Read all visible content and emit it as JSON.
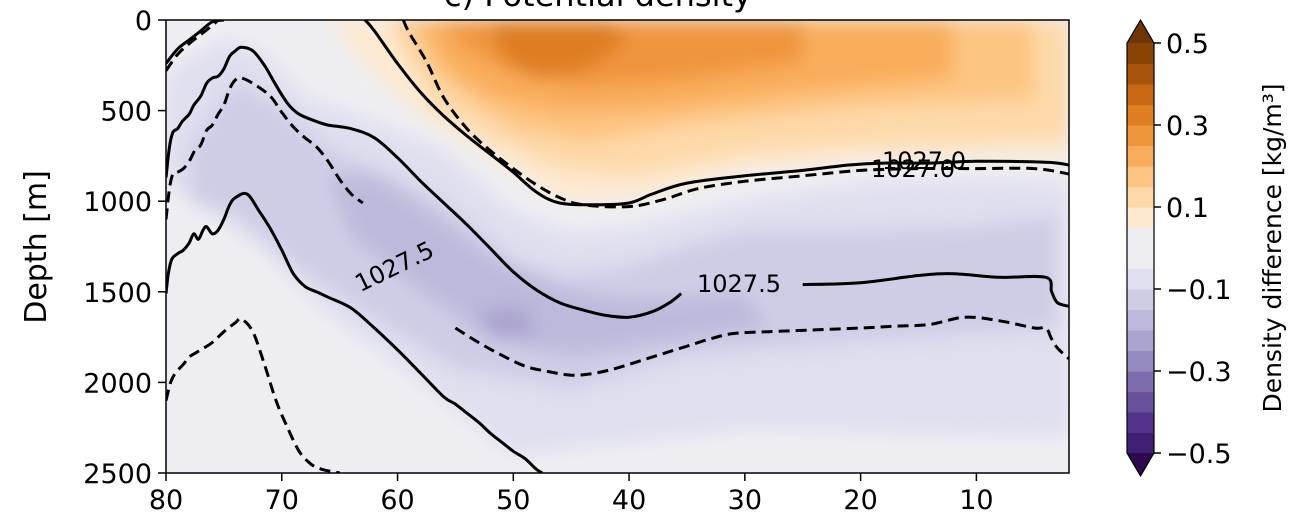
{
  "chart_data": {
    "type": "contour",
    "title": "c) Potential density",
    "ylabel": "Depth [m]",
    "xlim": [
      80,
      2
    ],
    "ylim": [
      2500,
      0
    ],
    "x_ticks": [
      80,
      70,
      60,
      50,
      40,
      30,
      20,
      10
    ],
    "y_ticks": [
      0,
      500,
      1000,
      1500,
      2000,
      2500
    ],
    "colorbar": {
      "label": "Density difference [kg/m³]",
      "range": [
        -0.5,
        0.5
      ],
      "ticks": [
        "0.5",
        "0.3",
        "0.1",
        "−0.1",
        "−0.3",
        "−0.5"
      ],
      "tick_values": [
        0.5,
        0.3,
        0.1,
        -0.1,
        -0.3,
        -0.5
      ],
      "levels": [
        -0.5,
        -0.45,
        -0.4,
        -0.35,
        -0.3,
        -0.25,
        -0.2,
        -0.15,
        -0.1,
        -0.05,
        0.05,
        0.1,
        0.15,
        0.2,
        0.25,
        0.3,
        0.35,
        0.4,
        0.45,
        0.5
      ],
      "extend": "both",
      "colors": [
        "#2d0a4e",
        "#3f1f73",
        "#53338a",
        "#67519d",
        "#7d6daf",
        "#958bc0",
        "#aaa4cf",
        "#bdb9dc",
        "#cfcde6",
        "#e0dfef",
        "#eeeef2",
        "#fde9d0",
        "#fdd9a9",
        "#fdc582",
        "#f9ad5c",
        "#ef953c",
        "#df7d21",
        "#c86815",
        "#a9540c",
        "#8a4306",
        "#6e3505"
      ],
      "extend_low_color": "#2d0a4e",
      "extend_high_color": "#6e3505"
    },
    "contour_labels": [
      "1027.0",
      "1027.0",
      "1027.5",
      "1027.5"
    ],
    "isopycnals": [
      {
        "level": 1027.0,
        "style": "solid",
        "points": [
          [
            80,
            240
          ],
          [
            79,
            160
          ],
          [
            78,
            110
          ],
          [
            77,
            60
          ],
          [
            76,
            10
          ],
          [
            75,
            0
          ]
        ]
      },
      {
        "level": 1027.0,
        "style": "dashed",
        "points": [
          [
            80,
            280
          ],
          [
            79,
            190
          ],
          [
            78,
            130
          ],
          [
            77,
            80
          ],
          [
            76,
            30
          ],
          [
            75.5,
            0
          ]
        ]
      },
      {
        "level": 1027.0,
        "style": "solid",
        "points": [
          [
            62.8,
            0
          ],
          [
            62,
            60
          ],
          [
            60,
            240
          ],
          [
            58,
            400
          ],
          [
            56,
            530
          ],
          [
            54,
            640
          ],
          [
            52,
            740
          ],
          [
            50,
            840
          ],
          [
            48,
            950
          ],
          [
            46,
            1010
          ],
          [
            43,
            1020
          ],
          [
            40,
            1010
          ],
          [
            38,
            960
          ],
          [
            35,
            900
          ],
          [
            30,
            860
          ],
          [
            25,
            830
          ],
          [
            21,
            800
          ],
          [
            18,
            790
          ],
          [
            14,
            790
          ],
          [
            10,
            780
          ],
          [
            4,
            785
          ],
          [
            2,
            800
          ]
        ]
      },
      {
        "level": 1027.0,
        "style": "dashed",
        "points": [
          [
            59.5,
            0
          ],
          [
            59,
            70
          ],
          [
            57.5,
            230
          ],
          [
            56,
            430
          ],
          [
            54,
            600
          ],
          [
            52,
            720
          ],
          [
            50,
            820
          ],
          [
            48,
            910
          ],
          [
            46,
            980
          ],
          [
            44,
            1020
          ],
          [
            40,
            1030
          ],
          [
            37,
            990
          ],
          [
            34,
            930
          ],
          [
            30,
            890
          ],
          [
            25,
            860
          ],
          [
            20,
            830
          ],
          [
            15,
            820
          ],
          [
            10,
            820
          ],
          [
            5,
            820
          ],
          [
            2,
            850
          ]
        ]
      },
      {
        "level": 1027.5,
        "style": "solid",
        "points": [
          [
            80,
            870
          ],
          [
            79.7,
            700
          ],
          [
            79.4,
            620
          ],
          [
            79,
            600
          ],
          [
            78.6,
            560
          ],
          [
            78,
            520
          ],
          [
            77.6,
            470
          ],
          [
            77,
            420
          ],
          [
            76.5,
            350
          ],
          [
            76,
            320
          ],
          [
            75.5,
            310
          ],
          [
            75,
            270
          ],
          [
            74.5,
            200
          ],
          [
            74,
            170
          ],
          [
            73.5,
            150
          ],
          [
            72.5,
            170
          ],
          [
            71.5,
            250
          ],
          [
            70.5,
            360
          ],
          [
            69.5,
            460
          ],
          [
            68.5,
            520
          ],
          [
            67,
            560
          ],
          [
            66,
            580
          ],
          [
            64,
            600
          ],
          [
            62,
            650
          ],
          [
            60,
            760
          ],
          [
            58,
            890
          ],
          [
            56,
            1010
          ],
          [
            54,
            1130
          ],
          [
            52,
            1260
          ],
          [
            50,
            1390
          ],
          [
            48,
            1490
          ],
          [
            46,
            1560
          ],
          [
            44,
            1600
          ],
          [
            42,
            1630
          ],
          [
            40,
            1640
          ],
          [
            38,
            1610
          ],
          [
            36.5,
            1560
          ],
          [
            35.5,
            1510
          ]
        ]
      },
      {
        "level": 1027.5,
        "style": "solid",
        "points": [
          [
            25,
            1460
          ],
          [
            20,
            1450
          ],
          [
            15,
            1410
          ],
          [
            12,
            1400
          ],
          [
            8,
            1420
          ],
          [
            4,
            1420
          ],
          [
            3.5,
            1500
          ],
          [
            3,
            1560
          ],
          [
            2,
            1580
          ]
        ]
      },
      {
        "level": 1027.5,
        "style": "dashed",
        "points": [
          [
            80,
            1100
          ],
          [
            79.7,
            930
          ],
          [
            79.4,
            850
          ],
          [
            79,
            840
          ],
          [
            78.5,
            820
          ],
          [
            78,
            780
          ],
          [
            77.5,
            720
          ],
          [
            77,
            690
          ],
          [
            76.5,
            610
          ],
          [
            76,
            580
          ],
          [
            75.5,
            520
          ],
          [
            75,
            470
          ],
          [
            74.5,
            380
          ],
          [
            74,
            330
          ],
          [
            73.5,
            320
          ],
          [
            72.5,
            350
          ],
          [
            71,
            420
          ],
          [
            70,
            510
          ],
          [
            69,
            590
          ],
          [
            68,
            650
          ],
          [
            67,
            700
          ],
          [
            66,
            780
          ],
          [
            65,
            880
          ],
          [
            64,
            960
          ],
          [
            63,
            1010
          ]
        ]
      },
      {
        "level": 1027.5,
        "style": "dashed",
        "points": [
          [
            55,
            1700
          ],
          [
            53,
            1780
          ],
          [
            51,
            1850
          ],
          [
            49,
            1910
          ],
          [
            47,
            1940
          ],
          [
            45,
            1960
          ],
          [
            43,
            1950
          ],
          [
            41,
            1920
          ],
          [
            39,
            1880
          ],
          [
            37,
            1840
          ],
          [
            35,
            1800
          ],
          [
            33,
            1760
          ],
          [
            31,
            1730
          ],
          [
            28,
            1720
          ],
          [
            24,
            1710
          ],
          [
            20,
            1700
          ],
          [
            17,
            1690
          ],
          [
            14,
            1680
          ],
          [
            11,
            1640
          ],
          [
            8,
            1660
          ],
          [
            5,
            1700
          ],
          [
            4,
            1700
          ],
          [
            3.5,
            1760
          ],
          [
            3,
            1810
          ],
          [
            2,
            1870
          ]
        ]
      },
      {
        "level": 1027.7,
        "style": "solid",
        "points": [
          [
            80,
            1510
          ],
          [
            79.8,
            1400
          ],
          [
            79.5,
            1320
          ],
          [
            79,
            1290
          ],
          [
            78.5,
            1270
          ],
          [
            78,
            1230
          ],
          [
            77.6,
            1180
          ],
          [
            77.2,
            1210
          ],
          [
            76.8,
            1160
          ],
          [
            76.5,
            1140
          ],
          [
            76,
            1180
          ],
          [
            75.5,
            1160
          ],
          [
            75,
            1100
          ],
          [
            74.5,
            1020
          ],
          [
            74,
            980
          ],
          [
            73,
            960
          ],
          [
            72,
            1050
          ],
          [
            71,
            1150
          ],
          [
            70,
            1270
          ],
          [
            69,
            1400
          ],
          [
            68,
            1470
          ],
          [
            67,
            1500
          ],
          [
            66,
            1530
          ],
          [
            64,
            1590
          ],
          [
            62,
            1700
          ],
          [
            60,
            1820
          ],
          [
            58,
            1950
          ],
          [
            56,
            2080
          ],
          [
            55,
            2120
          ],
          [
            54,
            2170
          ],
          [
            53,
            2220
          ],
          [
            52,
            2280
          ],
          [
            51,
            2330
          ],
          [
            50,
            2380
          ],
          [
            49,
            2420
          ],
          [
            48,
            2480
          ],
          [
            47.5,
            2500
          ]
        ]
      },
      {
        "level": 1027.8,
        "style": "dashed",
        "points": [
          [
            80,
            2100
          ],
          [
            79.6,
            2000
          ],
          [
            79.2,
            1950
          ],
          [
            78.5,
            1900
          ],
          [
            78,
            1860
          ],
          [
            77.5,
            1840
          ],
          [
            77,
            1820
          ],
          [
            76,
            1780
          ],
          [
            75,
            1720
          ],
          [
            74,
            1670
          ],
          [
            73.5,
            1650
          ],
          [
            72.5,
            1720
          ],
          [
            71.5,
            1900
          ],
          [
            70.5,
            2100
          ],
          [
            69.5,
            2250
          ],
          [
            68.5,
            2380
          ],
          [
            67.5,
            2450
          ],
          [
            66.5,
            2480
          ],
          [
            65,
            2500
          ]
        ]
      }
    ],
    "difference_field": "Filled contours of density difference: positive (orange, up to ~0.3 kg/m³) in the upper 1000 m north of ~60 to the right edge; near-zero bands around; negative (purple, ~-0.15 to -0.2 kg/m³) along a sloping band following the 1027.5 isopycnal between ~1000 and ~2000 m; near zero at depth."
  }
}
